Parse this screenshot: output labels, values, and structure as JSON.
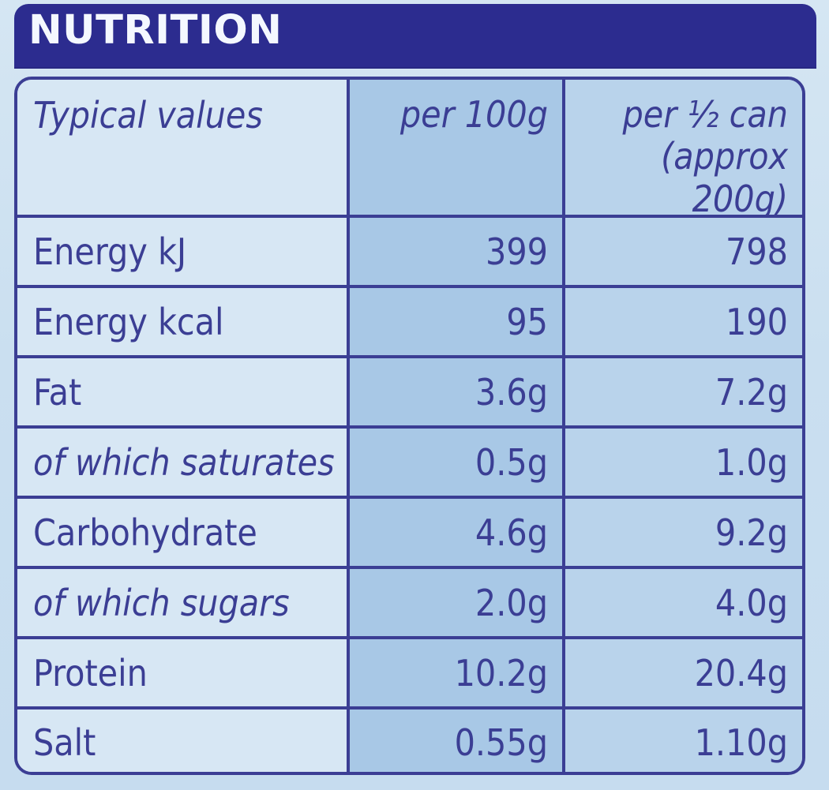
{
  "header": {
    "title": "NUTRITION"
  },
  "table": {
    "columns": [
      {
        "label": "Typical values"
      },
      {
        "label": "per 100g"
      },
      {
        "label": "per ½ can\n(approx 200g)"
      }
    ],
    "rows": [
      {
        "label": "Energy kJ",
        "per100": "399",
        "perHalf": "798",
        "italic": false
      },
      {
        "label": "Energy kcal",
        "per100": "95",
        "perHalf": "190",
        "italic": false
      },
      {
        "label": "Fat",
        "per100": "3.6g",
        "perHalf": "7.2g",
        "italic": false
      },
      {
        "label": "of which saturates",
        "per100": "0.5g",
        "perHalf": "1.0g",
        "italic": true
      },
      {
        "label": "Carbohydrate",
        "per100": "4.6g",
        "perHalf": "9.2g",
        "italic": false
      },
      {
        "label": "of which sugars",
        "per100": "2.0g",
        "perHalf": "4.0g",
        "italic": true
      },
      {
        "label": "Protein",
        "per100": "10.2g",
        "perHalf": "20.4g",
        "italic": false
      },
      {
        "label": "Salt",
        "per100": "0.55g",
        "perHalf": "1.10g",
        "italic": false
      }
    ]
  },
  "colors": {
    "header_band": "#2c2c8f",
    "border": "#3b3e94",
    "text": "#3b3e94",
    "label_bg": "#d7e7f4",
    "per100_bg": "#a8c8e6",
    "perhalf_bg": "#b9d3eb"
  }
}
